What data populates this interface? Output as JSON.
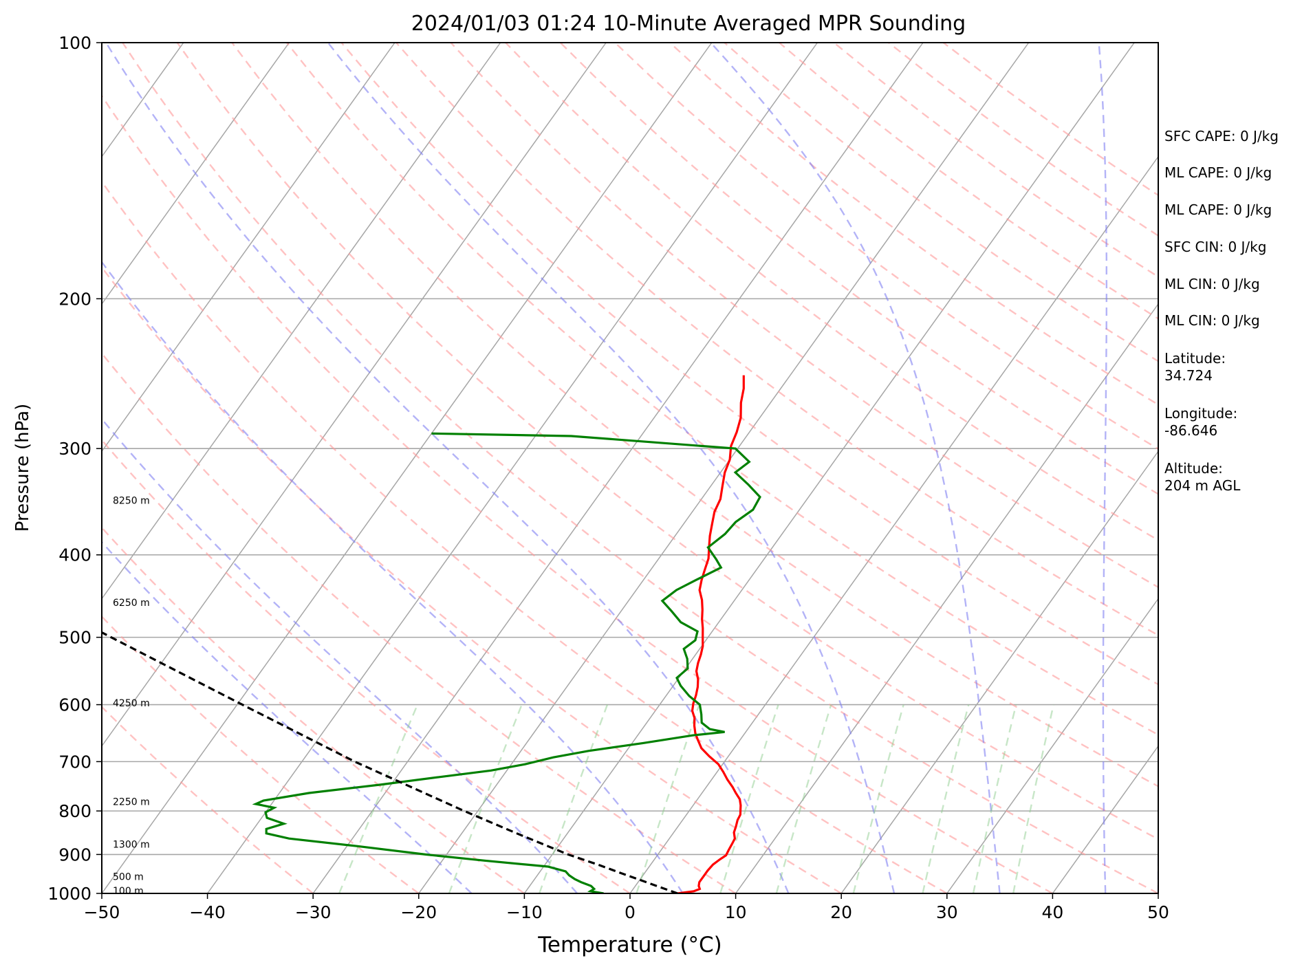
{
  "chart_data": {
    "type": "skew-t",
    "title": "2024/01/03 01:24 10-Minute Averaged MPR Sounding",
    "xlabel": "Temperature (°C)",
    "ylabel": "Pressure (hPa)",
    "xlim": [
      -50,
      50
    ],
    "ylim": [
      1000,
      100
    ],
    "y_scale": "log",
    "skew_degrees": 30,
    "grid": true,
    "x_ticks": [
      -50,
      -40,
      -30,
      -20,
      -10,
      0,
      10,
      20,
      30,
      40,
      50
    ],
    "x_tick_labels": [
      "−50",
      "−40",
      "−30",
      "−20",
      "−10",
      "0",
      "10",
      "20",
      "30",
      "40",
      "50"
    ],
    "y_ticks": [
      1000,
      900,
      800,
      700,
      600,
      500,
      400,
      300,
      200,
      100
    ],
    "y_tick_labels": [
      "1000",
      "900",
      "800",
      "700",
      "600",
      "500",
      "400",
      "300",
      "200",
      "100"
    ],
    "height_labels": [
      {
        "text": "100 m",
        "p": 993
      },
      {
        "text": "500 m",
        "p": 955
      },
      {
        "text": "1300 m",
        "p": 875
      },
      {
        "text": "2250 m",
        "p": 780
      },
      {
        "text": "4250 m",
        "p": 597
      },
      {
        "text": "6250 m",
        "p": 455
      },
      {
        "text": "8250 m",
        "p": 345
      }
    ],
    "series": [
      {
        "kind": "temperature",
        "color": "#ff0000",
        "points": [
          [
            1000,
            4.5
          ],
          [
            994,
            5.9
          ],
          [
            988,
            6.3
          ],
          [
            980,
            6.0
          ],
          [
            970,
            5.8
          ],
          [
            955,
            5.8
          ],
          [
            940,
            5.8
          ],
          [
            925,
            5.9
          ],
          [
            912,
            6.2
          ],
          [
            902,
            6.5
          ],
          [
            890,
            6.4
          ],
          [
            875,
            6.3
          ],
          [
            862,
            6.2
          ],
          [
            848,
            5.7
          ],
          [
            835,
            5.5
          ],
          [
            820,
            5.2
          ],
          [
            808,
            5.1
          ],
          [
            798,
            4.8
          ],
          [
            788,
            4.5
          ],
          [
            775,
            4.0
          ],
          [
            762,
            3.2
          ],
          [
            750,
            2.5
          ],
          [
            735,
            1.5
          ],
          [
            720,
            0.6
          ],
          [
            705,
            -0.4
          ],
          [
            690,
            -1.8
          ],
          [
            675,
            -3.1
          ],
          [
            660,
            -4.0
          ],
          [
            648,
            -4.7
          ],
          [
            635,
            -5.3
          ],
          [
            622,
            -5.8
          ],
          [
            610,
            -6.5
          ],
          [
            598,
            -6.9
          ],
          [
            585,
            -7.2
          ],
          [
            572,
            -7.6
          ],
          [
            560,
            -8.1
          ],
          [
            548,
            -8.8
          ],
          [
            536,
            -9.2
          ],
          [
            524,
            -9.5
          ],
          [
            512,
            -9.9
          ],
          [
            500,
            -10.5
          ],
          [
            488,
            -11.1
          ],
          [
            476,
            -11.8
          ],
          [
            464,
            -12.4
          ],
          [
            452,
            -13.1
          ],
          [
            440,
            -14.0
          ],
          [
            428,
            -14.5
          ],
          [
            416,
            -14.9
          ],
          [
            404,
            -15.3
          ],
          [
            392,
            -16.0
          ],
          [
            380,
            -16.7
          ],
          [
            368,
            -17.3
          ],
          [
            356,
            -17.9
          ],
          [
            344,
            -18.2
          ],
          [
            332,
            -18.9
          ],
          [
            320,
            -19.6
          ],
          [
            309,
            -20.0
          ],
          [
            298,
            -20.8
          ],
          [
            287,
            -21.2
          ],
          [
            276,
            -21.8
          ],
          [
            265,
            -22.8
          ],
          [
            255,
            -23.5
          ],
          [
            246,
            -24.4
          ]
        ]
      },
      {
        "kind": "dewpoint",
        "color": "#008000",
        "points": [
          [
            1000,
            -2.5
          ],
          [
            994,
            -3.9
          ],
          [
            988,
            -3.7
          ],
          [
            980,
            -4.2
          ],
          [
            970,
            -5.4
          ],
          [
            962,
            -6.2
          ],
          [
            952,
            -7.0
          ],
          [
            942,
            -7.6
          ],
          [
            930,
            -9.6
          ],
          [
            915,
            -16.0
          ],
          [
            900,
            -22.0
          ],
          [
            880,
            -29.0
          ],
          [
            862,
            -36.0
          ],
          [
            850,
            -38.5
          ],
          [
            840,
            -38.8
          ],
          [
            828,
            -37.5
          ],
          [
            815,
            -39.5
          ],
          [
            803,
            -40.0
          ],
          [
            793,
            -39.5
          ],
          [
            785,
            -41.5
          ],
          [
            778,
            -41.0
          ],
          [
            762,
            -37.2
          ],
          [
            745,
            -31.0
          ],
          [
            730,
            -26.0
          ],
          [
            717,
            -21.5
          ],
          [
            705,
            -18.7
          ],
          [
            692,
            -16.5
          ],
          [
            680,
            -13.6
          ],
          [
            666,
            -9.0
          ],
          [
            652,
            -4.8
          ],
          [
            646,
            -2.0
          ],
          [
            641,
            -3.6
          ],
          [
            630,
            -4.8
          ],
          [
            616,
            -5.4
          ],
          [
            600,
            -6.2
          ],
          [
            586,
            -7.8
          ],
          [
            570,
            -9.3
          ],
          [
            558,
            -10.2
          ],
          [
            544,
            -9.8
          ],
          [
            530,
            -10.5
          ],
          [
            516,
            -11.5
          ],
          [
            504,
            -11.0
          ],
          [
            492,
            -11.4
          ],
          [
            480,
            -13.6
          ],
          [
            466,
            -15.2
          ],
          [
            453,
            -16.8
          ],
          [
            440,
            -16.2
          ],
          [
            428,
            -15.0
          ],
          [
            414,
            -13.5
          ],
          [
            405,
            -14.5
          ],
          [
            392,
            -16.1
          ],
          [
            378,
            -15.4
          ],
          [
            366,
            -15.2
          ],
          [
            354,
            -14.4
          ],
          [
            342,
            -14.6
          ],
          [
            331,
            -16.5
          ],
          [
            320,
            -18.6
          ],
          [
            311,
            -18.0
          ],
          [
            302,
            -19.8
          ],
          [
            300,
            -20.2
          ],
          [
            290,
            -36.6
          ],
          [
            288,
            -50
          ]
        ]
      },
      {
        "kind": "parcel-profile",
        "color": "#000000",
        "points": [
          [
            1000,
            4.5
          ],
          [
            950,
            -1.8
          ],
          [
            925,
            -5.0
          ],
          [
            900,
            -8.5
          ],
          [
            850,
            -14.8
          ],
          [
            800,
            -21.3
          ],
          [
            700,
            -35.0
          ],
          [
            600,
            -49.5
          ],
          [
            500,
            -66.5
          ],
          [
            400,
            -87.0
          ],
          [
            300,
            -112.0
          ],
          [
            273,
            -119.8
          ]
        ]
      }
    ],
    "reference_lines": {
      "dry_adiabats_theta_C": [
        -30,
        -20,
        -10,
        0,
        10,
        20,
        30,
        40,
        50,
        60,
        70,
        80,
        90,
        100,
        110,
        120,
        130,
        140,
        150,
        160,
        170,
        180,
        190,
        200
      ],
      "moist_adiabats_start_C": [
        -15,
        -5,
        5,
        15,
        25,
        35,
        45,
        50
      ],
      "mixing_ratio_gkg": [
        0.4,
        1,
        2,
        4,
        7,
        10,
        16,
        24,
        32,
        40
      ],
      "colors": {
        "isotherm": "#a6a6a6",
        "dry_adiabat": "#ff9a9a",
        "moist_adiabat": "#8080f2",
        "mixing_ratio": "#8fce8f"
      }
    }
  },
  "stats": [
    "SFC CAPE: 0 J/kg",
    "ML CAPE: 0 J/kg",
    "ML CAPE: 0 J/kg",
    "SFC CIN: 0 J/kg",
    "ML CIN: 0 J/kg",
    "ML CIN: 0 J/kg",
    "Latitude:",
    "34.724",
    "Longitude:",
    "-86.646",
    "Altitude:",
    "204 m AGL"
  ]
}
